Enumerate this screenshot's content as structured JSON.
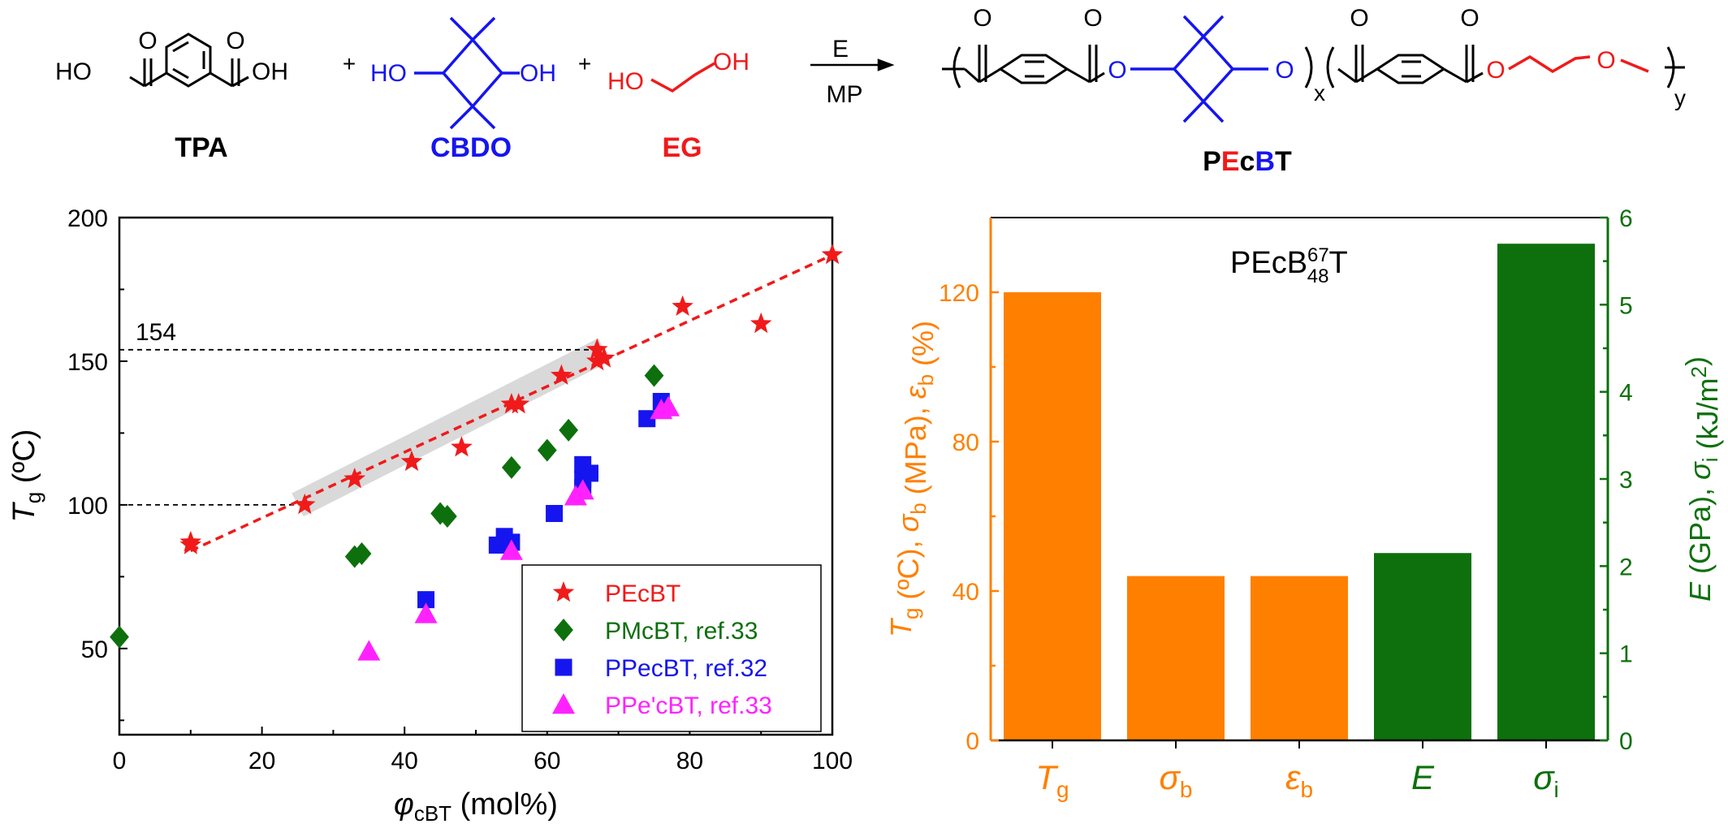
{
  "colors": {
    "black": "#000000",
    "blue": "#1515f0",
    "red": "#f01a1a",
    "orange": "#ff8000",
    "green": "#0d700d",
    "magenta": "#ff22ff",
    "gray_band": "#d9d9d9"
  },
  "scheme": {
    "tpa": {
      "name": "TPA",
      "left": "HO",
      "right": "OH"
    },
    "cbdo": {
      "name": "CBDO",
      "left": "HO",
      "right": "OH"
    },
    "eg": {
      "name": "EG",
      "left": "HO",
      "right": "OH"
    },
    "plus": "+",
    "arrow_top": "E",
    "arrow_bottom": "MP",
    "product": {
      "name_p": "P",
      "name_e": "E",
      "name_c": "c",
      "name_b": "B",
      "name_t": "T",
      "oxygen": "O",
      "carbonyl_o": "O",
      "sub_x": "x",
      "sub_y": "y"
    }
  },
  "chart_data": [
    {
      "type": "scatter",
      "xlabel": {
        "italic": "φ",
        "sub": "cBT",
        "rest": " (mol%)"
      },
      "ylabel": {
        "italic": "T",
        "sub": "g",
        "rest": " (ºC)"
      },
      "xlim": [
        0,
        100
      ],
      "ylim": [
        20,
        200
      ],
      "xticks": [
        0,
        20,
        40,
        60,
        80,
        100
      ],
      "yticks": [
        50,
        100,
        150,
        200
      ],
      "reference_lines": [
        {
          "y": 154,
          "x_end": 67,
          "label": "154"
        },
        {
          "y": 100,
          "x_end": 25,
          "label": ""
        }
      ],
      "highlight_band": {
        "x_start": 25,
        "x_end": 68,
        "y_start": 100,
        "y_end": 154
      },
      "fit_line": {
        "x": [
          10,
          100
        ],
        "y": [
          84,
          187
        ]
      },
      "legend_position": "bottom-right",
      "series": [
        {
          "name": "PEcBT",
          "marker": "star",
          "color": "#f01a1a",
          "points": [
            [
              10,
              86
            ],
            [
              10,
              87
            ],
            [
              26,
              100
            ],
            [
              33,
              109
            ],
            [
              41,
              115
            ],
            [
              48,
              120
            ],
            [
              55,
              135
            ],
            [
              56,
              135
            ],
            [
              62,
              145
            ],
            [
              67,
              154
            ],
            [
              67,
              150
            ],
            [
              68,
              151
            ],
            [
              79,
              169
            ],
            [
              90,
              163
            ],
            [
              100,
              187
            ]
          ]
        },
        {
          "name": "PMcBT, ref.33",
          "marker": "diamond",
          "color": "#0d700d",
          "points": [
            [
              0,
              54
            ],
            [
              33,
              82
            ],
            [
              34,
              83
            ],
            [
              45,
              97
            ],
            [
              46,
              96
            ],
            [
              55,
              113
            ],
            [
              60,
              119
            ],
            [
              63,
              126
            ],
            [
              75,
              145
            ]
          ]
        },
        {
          "name": "PPecBT, ref.32",
          "marker": "square",
          "color": "#1515f0",
          "points": [
            [
              43,
              67
            ],
            [
              53,
              86
            ],
            [
              54,
              89
            ],
            [
              55,
              87
            ],
            [
              61,
              97
            ],
            [
              65,
              106
            ],
            [
              65,
              109
            ],
            [
              65,
              114
            ],
            [
              66,
              111
            ],
            [
              74,
              130
            ],
            [
              76,
              136
            ]
          ]
        },
        {
          "name": "PPe'cBT, ref.33",
          "marker": "triangle",
          "color": "#ff22ff",
          "points": [
            [
              35,
              49
            ],
            [
              43,
              62
            ],
            [
              55,
              84
            ],
            [
              64,
              103
            ],
            [
              65,
              105
            ],
            [
              76,
              133
            ],
            [
              77,
              134
            ]
          ]
        }
      ]
    },
    {
      "type": "bar",
      "title": {
        "main": "PEcB",
        "sup": "67",
        "sub": "48",
        "end": "T"
      },
      "categories": [
        {
          "italic": "T",
          "sub": "g"
        },
        {
          "italic": "σ",
          "sub": "b"
        },
        {
          "italic": "ε",
          "sub": "b"
        },
        {
          "italic": "E",
          "sub": ""
        },
        {
          "italic": "σ",
          "sub": "i"
        }
      ],
      "values": [
        120,
        44,
        44,
        2.15,
        5.7
      ],
      "axis": [
        "left",
        "left",
        "left",
        "right",
        "right"
      ],
      "bar_colors": [
        "#ff8000",
        "#ff8000",
        "#ff8000",
        "#0d700d",
        "#0d700d"
      ],
      "left_axis": {
        "ylim": [
          0,
          140
        ],
        "ticks": [
          0,
          40,
          80,
          120
        ],
        "color": "#ff8000",
        "label": [
          {
            "t": "T",
            "i": true
          },
          {
            "t": "g",
            "sub": true
          },
          {
            "t": " (ºC), "
          },
          {
            "t": "σ",
            "i": true
          },
          {
            "t": "b",
            "sub": true
          },
          {
            "t": " (MPa), "
          },
          {
            "t": "ε",
            "i": true
          },
          {
            "t": "b",
            "sub": true
          },
          {
            "t": " (%)"
          }
        ]
      },
      "right_axis": {
        "ylim": [
          0,
          6
        ],
        "ticks": [
          0,
          1,
          2,
          3,
          4,
          5,
          6
        ],
        "color": "#0d700d",
        "label": [
          {
            "t": "E",
            "i": true
          },
          {
            "t": " (GPa), "
          },
          {
            "t": "σ",
            "i": true
          },
          {
            "t": "i",
            "sub": true
          },
          {
            "t": " (kJ/m"
          },
          {
            "t": "2",
            "sup": true
          },
          {
            "t": ")"
          }
        ]
      }
    }
  ]
}
